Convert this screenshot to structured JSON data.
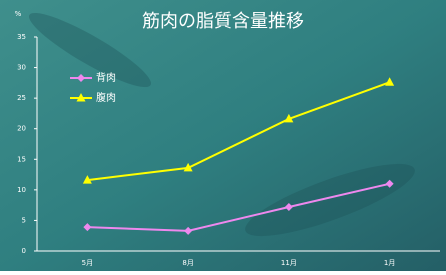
{
  "chart_data": {
    "type": "line",
    "title": "筋肉の脂質含量推移",
    "ylabel": "%",
    "categories": [
      "5月",
      "8月",
      "11月",
      "1月"
    ],
    "series": [
      {
        "name": "背肉",
        "color": "#ee88ee",
        "marker": "diamond",
        "values": [
          3.9,
          3.3,
          7.2,
          11.0
        ]
      },
      {
        "name": "腹肉",
        "color": "#ffff00",
        "marker": "triangle",
        "values": [
          11.6,
          13.6,
          21.6,
          27.6
        ]
      }
    ],
    "ylim": [
      0,
      35
    ],
    "yticks": [
      0,
      5,
      10,
      15,
      20,
      25,
      30,
      35
    ],
    "grid": false
  }
}
